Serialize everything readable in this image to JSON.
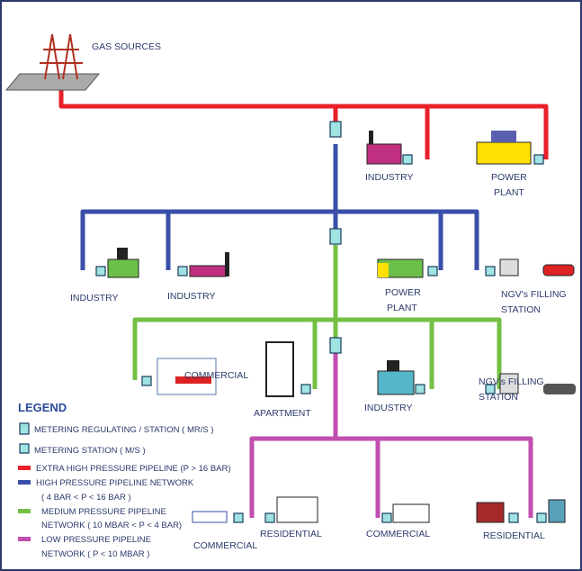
{
  "labels": [
    "GAS SOURCES",
    "INDUSTRY",
    "POWER",
    "PLANT",
    "INDUSTRY",
    "INDUSTRY",
    "POWER",
    "PLANT",
    "NGV's FILLING",
    "STATION",
    "COMMERCIAL",
    "APARTMENT",
    "INDUSTRY",
    "NGV's FILLING",
    "STATION",
    "COMMERCIAL",
    "RESIDENTIAL",
    "COMMERCIAL",
    "RESIDENTIAL"
  ],
  "legend": {
    "title": "LEGEND",
    "items": [
      {
        "lines": [
          "METERING  REGULATING / STATION ( MR/S )"
        ]
      },
      {
        "lines": [
          "METERING STATION ( M/S )"
        ]
      },
      {
        "lines": [
          "EXTRA HIGH PRESSURE PIPELINE (P > 16 BAR)"
        ]
      },
      {
        "lines": [
          "HIGH PRESSURE PIPELINE NETWORK",
          "( 4 BAR < P < 16 BAR )"
        ]
      },
      {
        "lines": [
          "MEDIUM PRESSURE PIPELINE",
          "NETWORK ( 10 MBAR < P < 4 BAR)"
        ]
      },
      {
        "lines": [
          "LOW PRESSURE PIPELINE",
          "NETWORK  ( P < 10 MBAR )"
        ]
      }
    ]
  }
}
